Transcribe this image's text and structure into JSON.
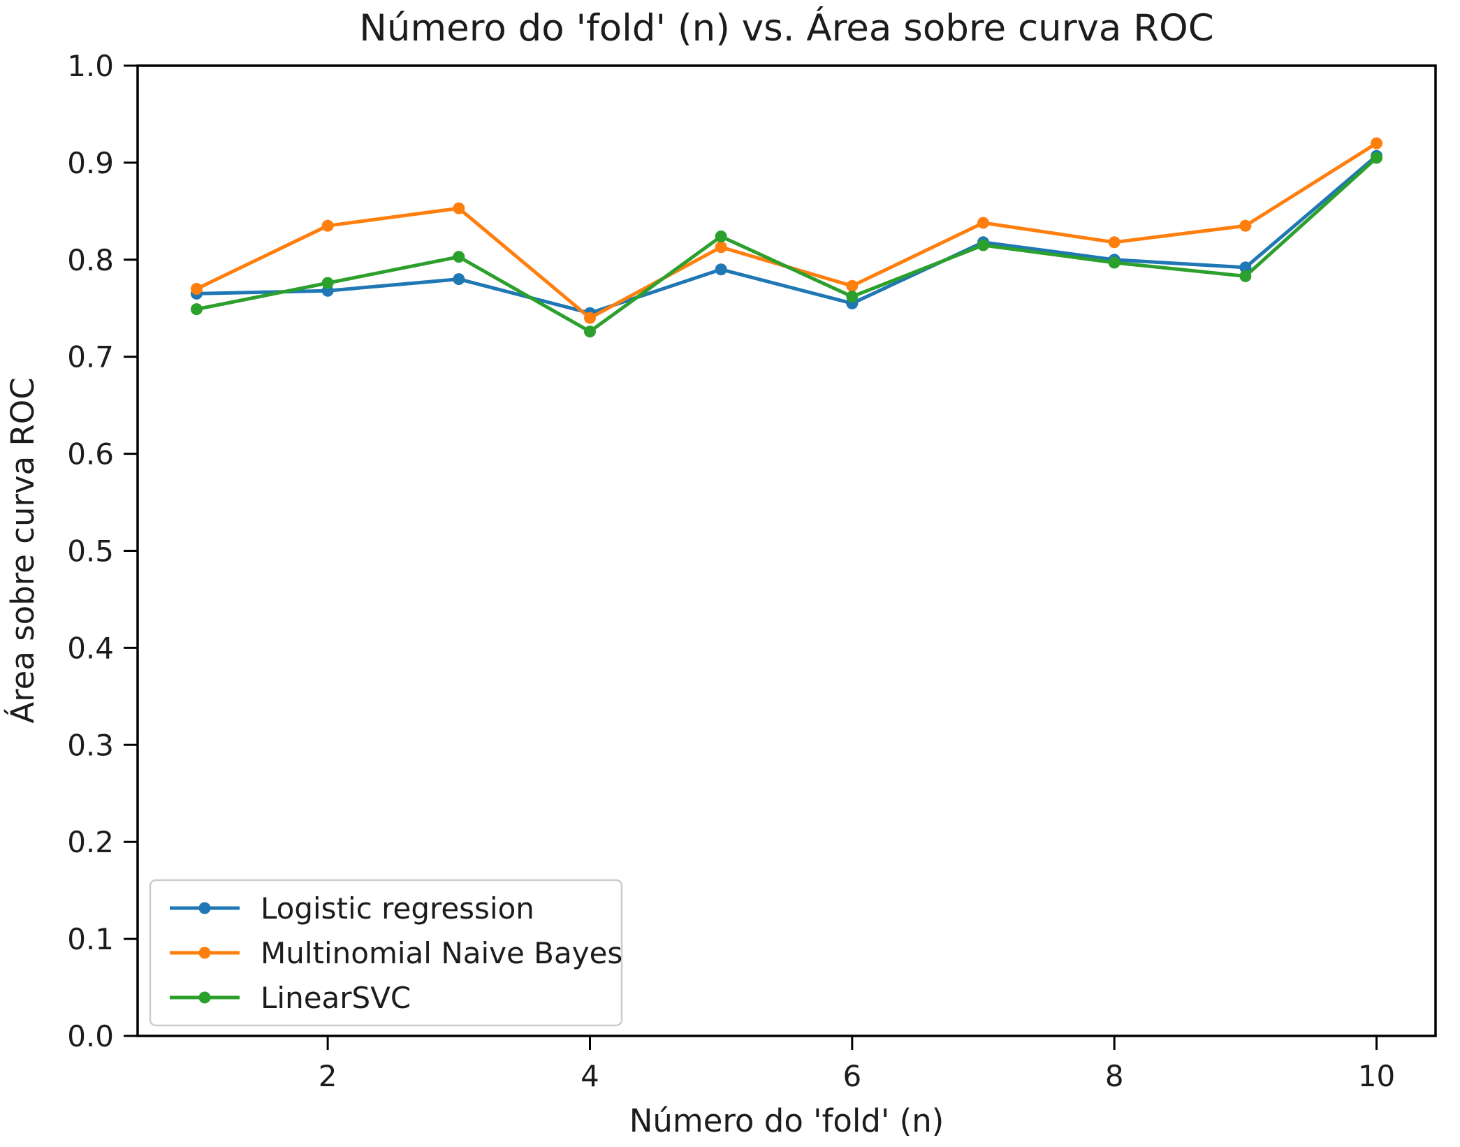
{
  "chart_data": {
    "type": "line",
    "title": "Número do 'fold' (n) vs. Área sobre curva ROC",
    "xlabel": "Número do 'fold' (n)",
    "ylabel": "Área sobre curva ROC",
    "x": [
      1,
      2,
      3,
      4,
      5,
      6,
      7,
      8,
      9,
      10
    ],
    "series": [
      {
        "name": "Logistic regression",
        "color": "#1f77b4",
        "values": [
          0.765,
          0.768,
          0.78,
          0.745,
          0.79,
          0.755,
          0.818,
          0.8,
          0.792,
          0.907
        ]
      },
      {
        "name": "Multinomial Naive Bayes",
        "color": "#ff7f0e",
        "values": [
          0.77,
          0.835,
          0.853,
          0.74,
          0.813,
          0.773,
          0.838,
          0.818,
          0.835,
          0.92
        ]
      },
      {
        "name": "LinearSVC",
        "color": "#2ca02c",
        "values": [
          0.749,
          0.776,
          0.803,
          0.726,
          0.824,
          0.762,
          0.815,
          0.797,
          0.783,
          0.905
        ]
      }
    ],
    "xlim": [
      0.55,
      10.45
    ],
    "ylim": [
      0.0,
      1.0
    ],
    "xticks": {
      "values": [
        2,
        4,
        6,
        8,
        10
      ],
      "labels": [
        "2",
        "4",
        "6",
        "8",
        "10"
      ]
    },
    "yticks": {
      "values": [
        0.0,
        0.1,
        0.2,
        0.3,
        0.4,
        0.5,
        0.6,
        0.7,
        0.8,
        0.9,
        1.0
      ],
      "labels": [
        "0.0",
        "0.1",
        "0.2",
        "0.3",
        "0.4",
        "0.5",
        "0.6",
        "0.7",
        "0.8",
        "0.9",
        "1.0"
      ]
    },
    "grid": false,
    "legend_position": "lower left",
    "marker": "circle",
    "axis_color": "#000000"
  }
}
